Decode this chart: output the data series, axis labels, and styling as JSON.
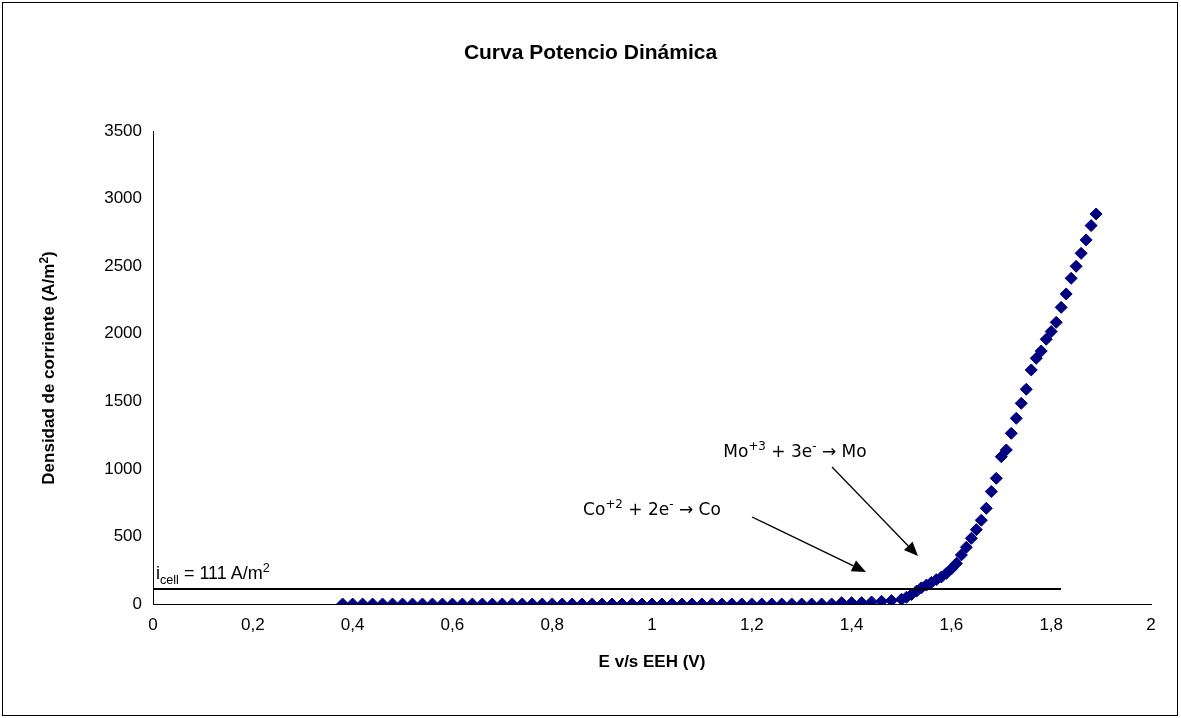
{
  "chart_data": {
    "type": "scatter",
    "title": "Curva Potencio Dinámica",
    "xlabel": "E v/s EEH (V)",
    "ylabel": "Densidad de corriente (A/m$^{2}$)",
    "x": [
      0.38,
      0.4,
      0.42,
      0.44,
      0.46,
      0.48,
      0.5,
      0.52,
      0.54,
      0.56,
      0.58,
      0.6,
      0.62,
      0.64,
      0.66,
      0.68,
      0.7,
      0.72,
      0.74,
      0.76,
      0.78,
      0.8,
      0.82,
      0.84,
      0.86,
      0.88,
      0.9,
      0.92,
      0.94,
      0.96,
      0.98,
      1.0,
      1.02,
      1.04,
      1.06,
      1.08,
      1.1,
      1.12,
      1.14,
      1.16,
      1.18,
      1.2,
      1.22,
      1.24,
      1.26,
      1.28,
      1.3,
      1.32,
      1.34,
      1.36,
      1.38,
      1.4,
      1.42,
      1.44,
      1.46,
      1.48,
      1.5,
      1.51,
      1.52,
      1.53,
      1.54,
      1.55,
      1.56,
      1.57,
      1.58,
      1.59,
      1.6,
      1.61,
      1.62,
      1.63,
      1.64,
      1.65,
      1.66,
      1.67,
      1.68,
      1.69,
      1.7,
      1.71,
      1.72,
      1.73,
      1.74,
      1.75,
      1.76,
      1.77,
      1.78,
      1.79,
      1.8,
      1.81,
      1.82,
      1.83,
      1.84,
      1.85,
      1.86,
      1.87,
      1.88,
      1.89
    ],
    "series": [
      {
        "color": "#000080",
        "values": [
          0,
          0,
          0,
          0,
          0,
          0,
          0,
          0,
          0,
          0,
          0,
          0,
          0,
          0,
          0,
          0,
          0,
          0,
          0,
          0,
          0,
          0,
          0,
          0,
          0,
          0,
          0,
          0,
          0,
          0,
          0,
          0,
          0,
          0,
          0,
          0,
          0,
          0,
          0,
          0,
          0,
          0,
          0,
          0,
          0,
          0,
          0,
          0,
          0,
          0,
          10,
          10,
          10,
          15,
          20,
          25,
          35,
          50,
          70,
          95,
          120,
          140,
          160,
          180,
          200,
          227,
          260,
          300,
          363,
          420,
          486,
          550,
          620,
          708,
          832,
          930,
          1090,
          1140,
          1263,
          1374,
          1485,
          1589,
          1732,
          1818,
          1872,
          1959,
          2016,
          2084,
          2195,
          2294,
          2410,
          2499,
          2595,
          2694,
          2800,
          2886
        ]
      }
    ],
    "marker": "diamond",
    "grid": false,
    "legend": false,
    "xlim": [
      0,
      2
    ],
    "xticks": [
      0,
      {
        "value": 0.2,
        "label": "0,2"
      },
      {
        "value": 0.4,
        "label": "0,4"
      },
      {
        "value": 0.6,
        "label": "0,6"
      },
      {
        "value": 0.8,
        "label": "0,8"
      },
      1,
      {
        "value": 1.2,
        "label": "1,2"
      },
      {
        "value": 1.4,
        "label": "1,4"
      },
      {
        "value": 1.6,
        "label": "1,6"
      },
      {
        "value": 1.8,
        "label": "1,8"
      },
      2
    ],
    "ylim": [
      0,
      3500
    ],
    "yticks": [
      0,
      500,
      1000,
      1500,
      2000,
      2500,
      3000,
      3500
    ],
    "ref_lines": [
      {
        "axis": "y",
        "value": 111,
        "label": "i$_{cell}$ = 111 A/m$^{2}$",
        "color": "#000000"
      }
    ],
    "annotations": [
      "Co$^{+2}$ + 2e$^{-}$ → Co",
      "Mo$^{+3}$ + 3e$^{-}$ → Mo"
    ]
  }
}
